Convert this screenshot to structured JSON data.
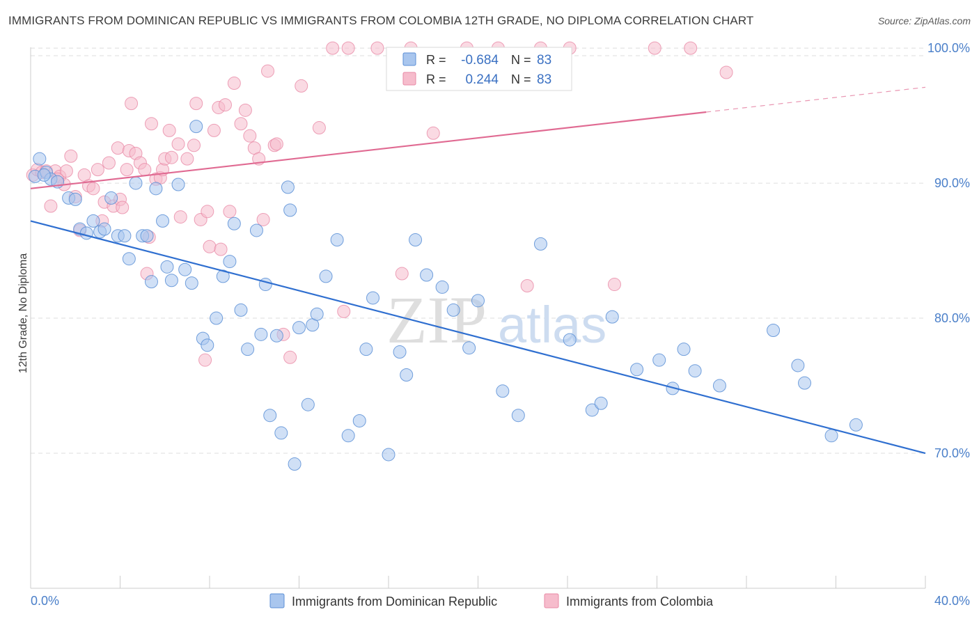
{
  "title": "IMMIGRANTS FROM DOMINICAN REPUBLIC VS IMMIGRANTS FROM COLOMBIA 12TH GRADE, NO DIPLOMA CORRELATION CHART",
  "source": "Source: ZipAtlas.com",
  "watermark": {
    "zip": "ZIP",
    "atlas": "atlas"
  },
  "legend_top": {
    "rows": [
      {
        "r_label": "R =",
        "r_value": "-0.684",
        "n_label": "N =",
        "n_value": "83"
      },
      {
        "r_label": "R =",
        "r_value": "0.244",
        "n_label": "N =",
        "n_value": "83"
      }
    ]
  },
  "colors": {
    "blue_fill": "#a9c6ee",
    "blue_stroke": "#5b8fd6",
    "blue_line": "#2f6fd0",
    "pink_fill": "#f6bccc",
    "pink_stroke": "#e88aa6",
    "pink_line": "#e06a92",
    "grid": "#dddddd",
    "axis_text": "#4a7fc9"
  },
  "chart_data": {
    "type": "scatter",
    "title": "IMMIGRANTS FROM DOMINICAN REPUBLIC VS IMMIGRANTS FROM COLOMBIA 12TH GRADE, NO DIPLOMA CORRELATION CHART",
    "ylabel": "12th Grade, No Diploma",
    "xlabel": "",
    "xlim": [
      0,
      40
    ],
    "ylim": [
      60,
      101.5
    ],
    "x_tick_labels": [
      "0.0%",
      "40.0%"
    ],
    "y_tick_labels": [
      "100.0%",
      "90.0%",
      "80.0%",
      "70.0%"
    ],
    "y_ticks": [
      100,
      90,
      80,
      70
    ],
    "grid": true,
    "legend_position": "top-center",
    "series": [
      {
        "name": "Immigrants from Dominican Republic",
        "r": -0.684,
        "n": 83,
        "trend": {
          "x": [
            0,
            40
          ],
          "y": [
            87.2,
            70.0
          ]
        },
        "points": [
          [
            0.2,
            90.5
          ],
          [
            0.4,
            91.8
          ],
          [
            0.7,
            90.8
          ],
          [
            0.9,
            90.3
          ],
          [
            1.2,
            90.1
          ],
          [
            1.7,
            88.9
          ],
          [
            2.0,
            88.8
          ],
          [
            2.2,
            86.6
          ],
          [
            2.5,
            86.3
          ],
          [
            2.8,
            87.2
          ],
          [
            3.1,
            86.4
          ],
          [
            3.3,
            86.6
          ],
          [
            3.6,
            88.9
          ],
          [
            3.9,
            86.1
          ],
          [
            4.2,
            86.1
          ],
          [
            4.4,
            84.4
          ],
          [
            4.7,
            90.0
          ],
          [
            5.0,
            86.1
          ],
          [
            5.2,
            86.1
          ],
          [
            5.4,
            82.7
          ],
          [
            5.6,
            89.6
          ],
          [
            5.9,
            87.2
          ],
          [
            6.1,
            83.8
          ],
          [
            6.3,
            82.8
          ],
          [
            6.6,
            89.9
          ],
          [
            6.9,
            83.6
          ],
          [
            7.2,
            82.6
          ],
          [
            7.4,
            94.2
          ],
          [
            7.7,
            78.5
          ],
          [
            7.9,
            78.0
          ],
          [
            8.3,
            80.0
          ],
          [
            8.6,
            83.1
          ],
          [
            8.9,
            84.2
          ],
          [
            9.1,
            87.0
          ],
          [
            9.4,
            80.6
          ],
          [
            9.7,
            77.7
          ],
          [
            10.1,
            86.5
          ],
          [
            10.3,
            78.8
          ],
          [
            10.5,
            82.5
          ],
          [
            10.7,
            72.8
          ],
          [
            11.0,
            78.7
          ],
          [
            11.2,
            71.5
          ],
          [
            11.5,
            89.7
          ],
          [
            11.6,
            88.0
          ],
          [
            11.8,
            69.2
          ],
          [
            12.0,
            79.3
          ],
          [
            12.4,
            73.6
          ],
          [
            12.6,
            79.5
          ],
          [
            12.8,
            80.3
          ],
          [
            13.2,
            83.1
          ],
          [
            13.7,
            85.8
          ],
          [
            14.2,
            71.3
          ],
          [
            14.7,
            72.4
          ],
          [
            15.0,
            77.7
          ],
          [
            15.3,
            81.5
          ],
          [
            16.0,
            69.9
          ],
          [
            16.5,
            77.5
          ],
          [
            16.8,
            75.8
          ],
          [
            17.2,
            85.8
          ],
          [
            17.7,
            83.2
          ],
          [
            18.4,
            82.3
          ],
          [
            18.9,
            80.6
          ],
          [
            19.6,
            77.8
          ],
          [
            20.0,
            81.3
          ],
          [
            21.1,
            74.6
          ],
          [
            21.8,
            72.8
          ],
          [
            22.8,
            85.5
          ],
          [
            24.1,
            78.4
          ],
          [
            25.1,
            73.2
          ],
          [
            25.5,
            73.7
          ],
          [
            26.0,
            80.1
          ],
          [
            27.1,
            76.2
          ],
          [
            28.1,
            76.9
          ],
          [
            28.7,
            74.8
          ],
          [
            29.2,
            77.7
          ],
          [
            29.7,
            76.1
          ],
          [
            30.8,
            75.0
          ],
          [
            33.2,
            79.1
          ],
          [
            34.3,
            76.5
          ],
          [
            34.6,
            75.2
          ],
          [
            35.8,
            71.3
          ],
          [
            36.9,
            72.1
          ],
          [
            0.6,
            90.6
          ]
        ]
      },
      {
        "name": "Immigrants from Colombia",
        "r": 0.244,
        "n": 83,
        "trend": {
          "x": [
            0,
            40
          ],
          "y": [
            89.6,
            97.1
          ]
        },
        "points": [
          [
            0.1,
            90.6
          ],
          [
            0.3,
            91.0
          ],
          [
            0.5,
            90.8
          ],
          [
            0.7,
            90.9
          ],
          [
            0.9,
            88.3
          ],
          [
            1.1,
            90.9
          ],
          [
            1.3,
            90.5
          ],
          [
            1.5,
            89.9
          ],
          [
            1.6,
            90.9
          ],
          [
            1.8,
            92.0
          ],
          [
            2.0,
            89.0
          ],
          [
            2.2,
            86.5
          ],
          [
            2.4,
            90.6
          ],
          [
            2.6,
            89.8
          ],
          [
            2.8,
            89.6
          ],
          [
            3.0,
            91.0
          ],
          [
            3.2,
            87.2
          ],
          [
            3.3,
            88.6
          ],
          [
            3.5,
            91.5
          ],
          [
            3.7,
            88.3
          ],
          [
            3.9,
            92.6
          ],
          [
            4.0,
            88.8
          ],
          [
            4.1,
            88.2
          ],
          [
            4.3,
            91.0
          ],
          [
            4.4,
            92.4
          ],
          [
            4.5,
            95.9
          ],
          [
            4.7,
            92.2
          ],
          [
            4.9,
            91.5
          ],
          [
            5.1,
            91.0
          ],
          [
            5.2,
            83.3
          ],
          [
            5.3,
            86.0
          ],
          [
            5.4,
            94.4
          ],
          [
            5.6,
            90.3
          ],
          [
            5.8,
            90.4
          ],
          [
            5.9,
            91.0
          ],
          [
            6.0,
            91.8
          ],
          [
            6.2,
            93.9
          ],
          [
            6.3,
            91.9
          ],
          [
            6.6,
            92.9
          ],
          [
            6.7,
            87.5
          ],
          [
            7.0,
            91.8
          ],
          [
            7.3,
            92.8
          ],
          [
            7.4,
            95.9
          ],
          [
            7.6,
            87.3
          ],
          [
            7.8,
            76.9
          ],
          [
            7.9,
            87.9
          ],
          [
            8.0,
            85.3
          ],
          [
            8.2,
            93.9
          ],
          [
            8.4,
            95.6
          ],
          [
            8.5,
            85.1
          ],
          [
            8.7,
            95.8
          ],
          [
            8.9,
            87.9
          ],
          [
            9.1,
            97.4
          ],
          [
            9.4,
            94.4
          ],
          [
            9.6,
            95.4
          ],
          [
            9.8,
            93.5
          ],
          [
            10.0,
            92.6
          ],
          [
            10.2,
            91.8
          ],
          [
            10.4,
            87.3
          ],
          [
            10.6,
            98.3
          ],
          [
            10.9,
            92.8
          ],
          [
            11.0,
            92.9
          ],
          [
            11.3,
            78.8
          ],
          [
            11.6,
            77.1
          ],
          [
            12.1,
            97.2
          ],
          [
            12.9,
            94.1
          ],
          [
            13.5,
            100.0
          ],
          [
            14.0,
            80.5
          ],
          [
            14.2,
            100.0
          ],
          [
            15.5,
            100.0
          ],
          [
            16.6,
            83.3
          ],
          [
            17.0,
            100.0
          ],
          [
            18.0,
            93.7
          ],
          [
            19.5,
            100.0
          ],
          [
            20.9,
            100.0
          ],
          [
            22.2,
            82.4
          ],
          [
            22.8,
            100.0
          ],
          [
            24.1,
            100.0
          ],
          [
            26.1,
            82.5
          ],
          [
            27.9,
            100.0
          ],
          [
            29.5,
            100.0
          ],
          [
            31.1,
            98.2
          ],
          [
            1.2,
            90.3
          ]
        ]
      }
    ]
  },
  "legend_bottom": [
    {
      "label": "Immigrants from Dominican Republic"
    },
    {
      "label": "Immigrants from Colombia"
    }
  ]
}
